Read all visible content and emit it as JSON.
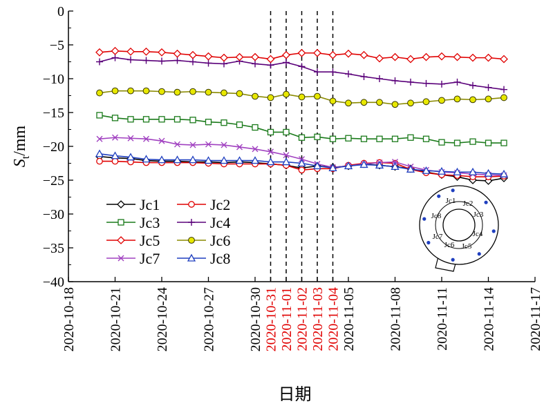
{
  "chart_data": {
    "type": "line",
    "xlabel": "日期",
    "ylabel": "S",
    "ylabel_sub": "t",
    "ylabel_unit": "/mm",
    "ylim": [
      -40,
      0
    ],
    "yticks": [
      0,
      -5,
      -10,
      -15,
      -20,
      -25,
      -30,
      -35,
      -40
    ],
    "ytick_labels": [
      "0",
      "−5",
      "−10",
      "−15",
      "−20",
      "−25",
      "−30",
      "−35",
      "−40"
    ],
    "xlim": [
      "2020-10-18",
      "2020-11-17"
    ],
    "xticks": [
      {
        "date": "2020-10-18",
        "label": "2020-10-18",
        "color": "#000000"
      },
      {
        "date": "2020-10-21",
        "label": "2020-10-21",
        "color": "#000000"
      },
      {
        "date": "2020-10-24",
        "label": "2020-10-24",
        "color": "#000000"
      },
      {
        "date": "2020-10-27",
        "label": "2020-10-27",
        "color": "#000000"
      },
      {
        "date": "2020-10-30",
        "label": "2020-10-30",
        "color": "#000000"
      },
      {
        "date": "2020-10-31",
        "label": "2020-10-31",
        "color": "#e00000"
      },
      {
        "date": "2020-11-01",
        "label": "2020-11-01",
        "color": "#e00000"
      },
      {
        "date": "2020-11-02",
        "label": "2020-11-02",
        "color": "#e00000"
      },
      {
        "date": "2020-11-03",
        "label": "2020-11-03",
        "color": "#e00000"
      },
      {
        "date": "2020-11-04",
        "label": "2020-11-04",
        "color": "#e00000"
      },
      {
        "date": "2020-11-05",
        "label": "2020-11-05",
        "color": "#000000"
      },
      {
        "date": "2020-11-08",
        "label": "2020-11-08",
        "color": "#000000"
      },
      {
        "date": "2020-11-11",
        "label": "2020-11-11",
        "color": "#000000"
      },
      {
        "date": "2020-11-14",
        "label": "2020-11-14",
        "color": "#000000"
      },
      {
        "date": "2020-11-17",
        "label": "2020-11-17",
        "color": "#000000"
      }
    ],
    "vlines": [
      "2020-10-31",
      "2020-11-01",
      "2020-11-02",
      "2020-11-03",
      "2020-11-04"
    ],
    "grid": false,
    "legend_position": "bottom-left",
    "x": [
      "2020-10-20",
      "2020-10-21",
      "2020-10-22",
      "2020-10-23",
      "2020-10-24",
      "2020-10-25",
      "2020-10-26",
      "2020-10-27",
      "2020-10-28",
      "2020-10-29",
      "2020-10-30",
      "2020-10-31",
      "2020-11-01",
      "2020-11-02",
      "2020-11-03",
      "2020-11-04",
      "2020-11-05",
      "2020-11-06",
      "2020-11-07",
      "2020-11-08",
      "2020-11-09",
      "2020-11-10",
      "2020-11-11",
      "2020-11-12",
      "2020-11-13",
      "2020-11-14",
      "2020-11-15"
    ],
    "series": [
      {
        "name": "Jc1",
        "color": "#000000",
        "marker": "diamond",
        "values": [
          -21.5,
          -21.7,
          -21.8,
          -22.1,
          -22.2,
          -22.2,
          -22.3,
          -22.3,
          -22.4,
          -22.3,
          -22.4,
          -22.6,
          -22.8,
          -23.2,
          -22.9,
          -23.1,
          -22.9,
          -22.6,
          -22.8,
          -23.0,
          -23.3,
          -23.8,
          -24.2,
          -24.5,
          -25.0,
          -25.1,
          -24.7
        ]
      },
      {
        "name": "Jc2",
        "color": "#e00000",
        "marker": "circle",
        "values": [
          -22.2,
          -22.2,
          -22.3,
          -22.4,
          -22.4,
          -22.4,
          -22.4,
          -22.5,
          -22.6,
          -22.6,
          -22.6,
          -22.6,
          -22.8,
          -23.5,
          -23.3,
          -23.3,
          -22.8,
          -22.5,
          -22.4,
          -22.5,
          -23.4,
          -23.9,
          -24.2,
          -24.3,
          -24.5,
          -24.5,
          -24.4
        ]
      },
      {
        "name": "Jc3",
        "color": "#1a7a1a",
        "marker": "square",
        "values": [
          -15.4,
          -15.8,
          -16.0,
          -16.0,
          -16.0,
          -16.0,
          -16.1,
          -16.4,
          -16.5,
          -16.8,
          -17.2,
          -17.9,
          -17.9,
          -18.7,
          -18.6,
          -18.9,
          -18.8,
          -18.9,
          -18.9,
          -18.9,
          -18.7,
          -18.9,
          -19.4,
          -19.5,
          -19.3,
          -19.5,
          -19.5
        ]
      },
      {
        "name": "Jc4",
        "color": "#5a007a",
        "marker": "plus",
        "values": [
          -7.5,
          -6.9,
          -7.2,
          -7.3,
          -7.4,
          -7.3,
          -7.5,
          -7.7,
          -7.8,
          -7.4,
          -7.8,
          -8.0,
          -7.6,
          -8.2,
          -9.0,
          -9.0,
          -9.3,
          -9.7,
          -10.0,
          -10.3,
          -10.5,
          -10.7,
          -10.8,
          -10.5,
          -11.0,
          -11.3,
          -11.6
        ]
      },
      {
        "name": "Jc5",
        "color": "#e00000",
        "marker": "diamond",
        "values": [
          -6.1,
          -5.9,
          -6.0,
          -6.0,
          -6.1,
          -6.3,
          -6.5,
          -6.7,
          -6.9,
          -6.8,
          -6.8,
          -7.1,
          -6.5,
          -6.2,
          -6.2,
          -6.5,
          -6.3,
          -6.5,
          -7.0,
          -6.8,
          -7.1,
          -6.8,
          -6.7,
          -6.8,
          -6.9,
          -6.9,
          -7.1
        ]
      },
      {
        "name": "Jc6",
        "color": "#8a8a00",
        "marker": "circle-filled",
        "values": [
          -12.1,
          -11.8,
          -11.8,
          -11.8,
          -11.9,
          -12.0,
          -11.9,
          -12.0,
          -12.1,
          -12.2,
          -12.6,
          -12.8,
          -12.3,
          -12.7,
          -12.6,
          -13.3,
          -13.6,
          -13.5,
          -13.5,
          -13.8,
          -13.6,
          -13.4,
          -13.2,
          -13.0,
          -13.1,
          -13.0,
          -12.8
        ]
      },
      {
        "name": "Jc7",
        "color": "#a040c0",
        "marker": "x",
        "values": [
          -18.9,
          -18.7,
          -18.8,
          -18.9,
          -19.2,
          -19.7,
          -19.8,
          -19.7,
          -19.8,
          -20.1,
          -20.4,
          -20.8,
          -21.3,
          -21.9,
          -22.6,
          -23.1,
          -22.9,
          -22.6,
          -22.4,
          -22.3,
          -23.0,
          -23.5,
          -23.8,
          -23.9,
          -24.1,
          -24.2,
          -24.3
        ]
      },
      {
        "name": "Jc8",
        "color": "#1f3fbf",
        "marker": "triangle",
        "values": [
          -21.1,
          -21.4,
          -21.6,
          -21.9,
          -22.0,
          -22.0,
          -22.0,
          -22.1,
          -22.1,
          -22.1,
          -22.1,
          -22.3,
          -22.3,
          -22.5,
          -22.9,
          -23.2,
          -22.9,
          -22.7,
          -22.8,
          -23.0,
          -23.4,
          -23.6,
          -23.7,
          -23.8,
          -23.8,
          -24.0,
          -24.1
        ]
      }
    ],
    "inset_labels": [
      "Jc1",
      "Jc2",
      "Jc3",
      "Jc4",
      "Jc5",
      "Jc6",
      "Jc7",
      "Jc8"
    ]
  }
}
